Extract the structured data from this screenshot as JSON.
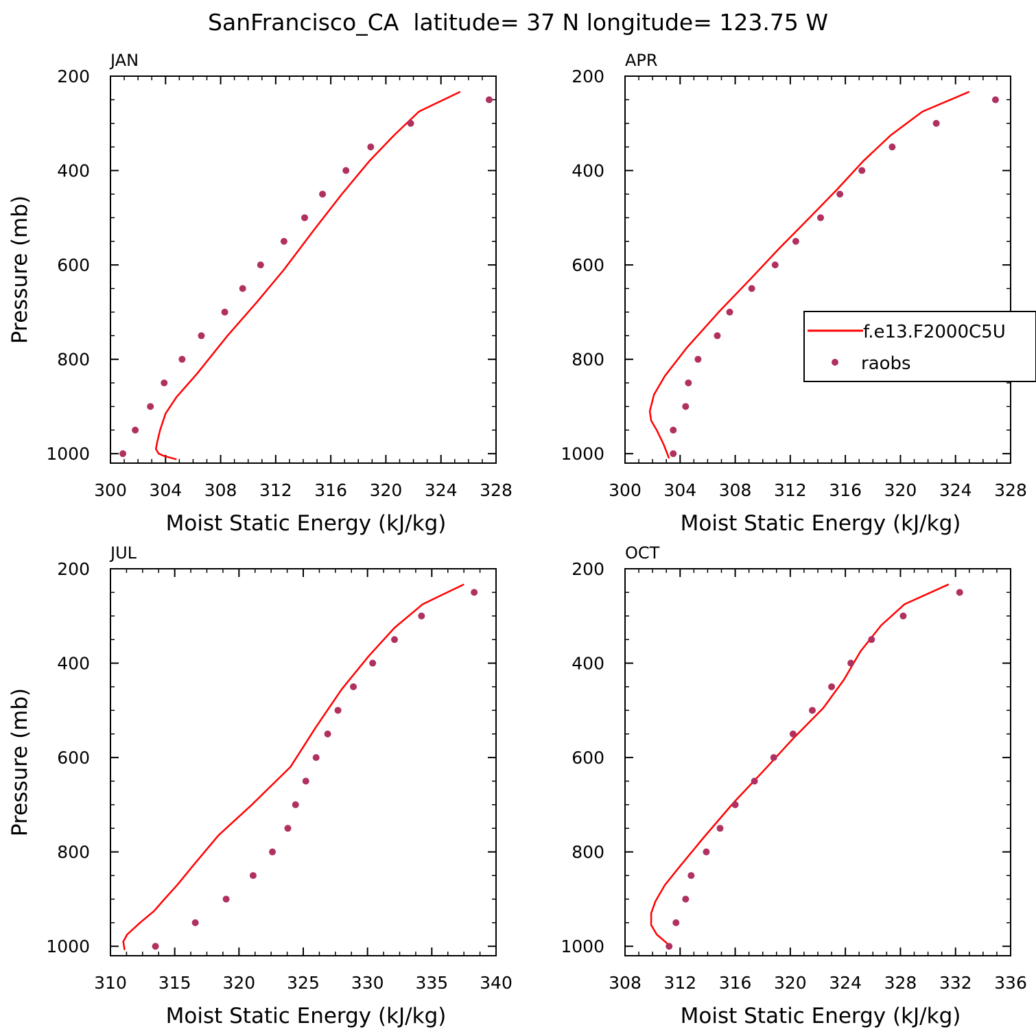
{
  "title": "SanFrancisco_CA  latitude= 37 N longitude= 123.75 W",
  "colors": {
    "model": "#ff0000",
    "obs": "#b03060",
    "axis": "#000000"
  },
  "legend": {
    "model_label": "f.e13.F2000C5U",
    "obs_label": "raobs",
    "placement": "right-middle of APR panel"
  },
  "chart_data": [
    {
      "type": "line",
      "panel_label": "JAN",
      "xlabel": "Moist Static Energy (kJ/kg)",
      "ylabel": "Pressure (mb)",
      "xlim": [
        300,
        328
      ],
      "xticks": [
        300,
        304,
        308,
        312,
        316,
        320,
        324,
        328
      ],
      "ylim": [
        1020,
        200
      ],
      "yticks": [
        200,
        400,
        600,
        800,
        1000
      ],
      "series": [
        {
          "name": "f.e13.F2000C5U",
          "kind": "line",
          "x": [
            325.4,
            322.4,
            320.6,
            318.8,
            316.8,
            314.8,
            312.6,
            310.6,
            308.5,
            306.3,
            304.8,
            304.0,
            303.6,
            303.4,
            303.3,
            303.5,
            303.9,
            304.8
          ],
          "y": [
            233,
            275,
            325,
            380,
            450,
            525,
            610,
            680,
            750,
            830,
            880,
            915,
            950,
            975,
            990,
            1000,
            1005,
            1012
          ]
        },
        {
          "name": "raobs",
          "kind": "scatter",
          "x": [
            327.5,
            321.8,
            318.9,
            317.1,
            315.4,
            314.1,
            312.6,
            310.9,
            309.6,
            308.3,
            306.6,
            305.2,
            303.9,
            302.9,
            301.8,
            300.9
          ],
          "y": [
            250,
            300,
            350,
            400,
            450,
            500,
            550,
            600,
            650,
            700,
            750,
            800,
            850,
            900,
            950,
            1000
          ]
        }
      ]
    },
    {
      "type": "line",
      "panel_label": "APR",
      "xlabel": "Moist Static Energy (kJ/kg)",
      "ylabel": "",
      "xlim": [
        300,
        328
      ],
      "xticks": [
        300,
        304,
        308,
        312,
        316,
        320,
        324,
        328
      ],
      "ylim": [
        1020,
        200
      ],
      "yticks": [
        200,
        400,
        600,
        800,
        1000
      ],
      "series": [
        {
          "name": "f.e13.F2000C5U",
          "kind": "line",
          "x": [
            325.0,
            321.6,
            319.3,
            317.3,
            315.4,
            313.4,
            311.2,
            309.1,
            306.8,
            304.5,
            302.9,
            302.1,
            301.8,
            301.9,
            302.3,
            302.8,
            303.2
          ],
          "y": [
            233,
            275,
            325,
            380,
            440,
            500,
            565,
            630,
            700,
            775,
            835,
            875,
            910,
            930,
            950,
            980,
            1010
          ]
        },
        {
          "name": "raobs",
          "kind": "scatter",
          "x": [
            326.9,
            322.6,
            319.4,
            317.2,
            315.6,
            314.2,
            312.4,
            310.9,
            309.2,
            307.6,
            306.7,
            305.3,
            304.6,
            304.4,
            303.5,
            303.5
          ],
          "y": [
            250,
            300,
            350,
            400,
            450,
            500,
            550,
            600,
            650,
            700,
            750,
            800,
            850,
            900,
            950,
            1000
          ]
        }
      ]
    },
    {
      "type": "line",
      "panel_label": "JUL",
      "xlabel": "Moist Static Energy (kJ/kg)",
      "ylabel": "Pressure (mb)",
      "xlim": [
        310,
        340
      ],
      "xticks": [
        310,
        315,
        320,
        325,
        330,
        335,
        340
      ],
      "ylim": [
        1020,
        200
      ],
      "yticks": [
        200,
        400,
        600,
        800,
        1000
      ],
      "series": [
        {
          "name": "f.e13.F2000C5U",
          "kind": "line",
          "x": [
            337.5,
            334.3,
            332.1,
            330.1,
            328.0,
            326.0,
            324.0,
            321.0,
            318.4,
            316.4,
            315.2,
            314.2,
            313.4,
            312.3,
            311.3,
            311.0,
            311.1
          ],
          "y": [
            233,
            275,
            325,
            385,
            455,
            535,
            620,
            700,
            765,
            830,
            870,
            900,
            925,
            950,
            975,
            990,
            1008
          ]
        },
        {
          "name": "raobs",
          "kind": "scatter",
          "x": [
            338.3,
            334.2,
            332.1,
            330.4,
            328.9,
            327.7,
            326.9,
            326.0,
            325.2,
            324.4,
            323.8,
            322.6,
            321.1,
            319.0,
            316.6,
            313.5
          ],
          "y": [
            250,
            300,
            350,
            400,
            450,
            500,
            550,
            600,
            650,
            700,
            750,
            800,
            850,
            900,
            950,
            1000
          ]
        }
      ]
    },
    {
      "type": "line",
      "panel_label": "OCT",
      "xlabel": "Moist Static Energy (kJ/kg)",
      "ylabel": "",
      "xlim": [
        308,
        336
      ],
      "xticks": [
        308,
        312,
        316,
        320,
        324,
        328,
        332,
        336
      ],
      "ylim": [
        1020,
        200
      ],
      "yticks": [
        200,
        400,
        600,
        800,
        1000
      ],
      "series": [
        {
          "name": "f.e13.F2000C5U",
          "kind": "line",
          "x": [
            331.5,
            328.3,
            326.6,
            325.1,
            323.9,
            322.4,
            320.2,
            318.0,
            315.9,
            313.7,
            312.0,
            310.9,
            310.2,
            309.9,
            309.9,
            310.3,
            311.3
          ],
          "y": [
            233,
            275,
            320,
            375,
            435,
            495,
            560,
            630,
            695,
            770,
            830,
            870,
            905,
            930,
            955,
            975,
            1000
          ]
        },
        {
          "name": "raobs",
          "kind": "scatter",
          "x": [
            332.3,
            328.2,
            325.9,
            324.4,
            323.0,
            321.6,
            320.2,
            318.8,
            317.4,
            316.0,
            314.9,
            313.9,
            312.8,
            312.4,
            311.7,
            311.2
          ],
          "y": [
            250,
            300,
            350,
            400,
            450,
            500,
            550,
            600,
            650,
            700,
            750,
            800,
            850,
            900,
            950,
            1000
          ]
        }
      ]
    }
  ]
}
